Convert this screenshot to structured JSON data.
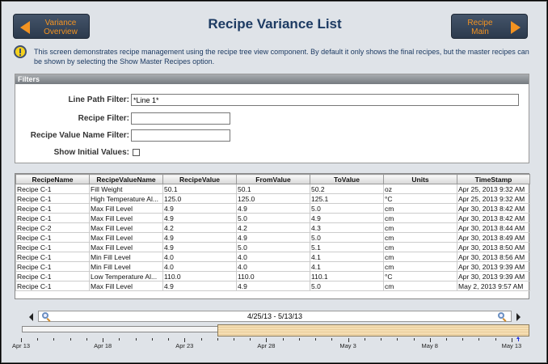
{
  "header": {
    "title": "Recipe Variance List",
    "left_button": "Variance Overview",
    "left_line1": "Variance",
    "left_line2": "Overview",
    "right_line1": "Recipe",
    "right_line2": "Main"
  },
  "info": {
    "icon": "warning-icon",
    "text": "This screen demonstrates recipe management using the recipe tree view component. By default it only shows the final recipes, but the master recipes can be shown by selecting the Show Master Recipes option."
  },
  "filters": {
    "title": "Filters",
    "line_path_label": "Line Path Filter:",
    "line_path_value": "*Line 1*",
    "recipe_label": "Recipe Filter:",
    "recipe_value": "",
    "value_name_label": "Recipe Value Name Filter:",
    "value_name_value": "",
    "show_initial_label": "Show Initial Values:",
    "show_initial_checked": false
  },
  "table": {
    "columns": [
      "RecipeName",
      "RecipeValueName",
      "RecipeValue",
      "FromValue",
      "ToValue",
      "Units",
      "TimeStamp"
    ],
    "rows": [
      [
        "Recipe C-1",
        "Fill Weight",
        "50.1",
        "50.1",
        "50.2",
        "oz",
        "Apr 25, 2013 9:32 AM"
      ],
      [
        "Recipe C-1",
        "High Temperature Al...",
        "125.0",
        "125.0",
        "125.1",
        "°C",
        "Apr 25, 2013 9:32 AM"
      ],
      [
        "Recipe C-1",
        "Max Fill Level",
        "4.9",
        "4.9",
        "5.0",
        "cm",
        "Apr 30, 2013 8:42 AM"
      ],
      [
        "Recipe C-1",
        "Max Fill Level",
        "4.9",
        "5.0",
        "4.9",
        "cm",
        "Apr 30, 2013 8:42 AM"
      ],
      [
        "Recipe C-2",
        "Max Fill Level",
        "4.2",
        "4.2",
        "4.3",
        "cm",
        "Apr 30, 2013 8:44 AM"
      ],
      [
        "Recipe C-1",
        "Max Fill Level",
        "4.9",
        "4.9",
        "5.0",
        "cm",
        "Apr 30, 2013 8:49 AM"
      ],
      [
        "Recipe C-1",
        "Max Fill Level",
        "4.9",
        "5.0",
        "5.1",
        "cm",
        "Apr 30, 2013 8:50 AM"
      ],
      [
        "Recipe C-1",
        "Min Fill Level",
        "4.0",
        "4.0",
        "4.1",
        "cm",
        "Apr 30, 2013 8:56 AM"
      ],
      [
        "Recipe C-1",
        "Min Fill Level",
        "4.0",
        "4.0",
        "4.1",
        "cm",
        "Apr 30, 2013 9:39 AM"
      ],
      [
        "Recipe C-1",
        "Low Temperature Al...",
        "110.0",
        "110.0",
        "110.1",
        "°C",
        "Apr 30, 2013 9:39 AM"
      ],
      [
        "Recipe C-1",
        "Max Fill Level",
        "4.9",
        "4.9",
        "5.0",
        "cm",
        "May 2, 2013 9:57 AM"
      ]
    ]
  },
  "timeline": {
    "range_label": "4/25/13 - 5/13/13",
    "selection_start": "2013-04-25",
    "selection_end": "2013-05-13",
    "axis_start": "2013-04-13",
    "axis_end": "2013-05-13",
    "labels": [
      "Apr 13",
      "Apr 18",
      "Apr 23",
      "Apr 28",
      "May 3",
      "May 8",
      "May 13"
    ],
    "zoom_out_icon": "zoom-out-icon",
    "zoom_in_icon": "zoom-in-icon"
  }
}
